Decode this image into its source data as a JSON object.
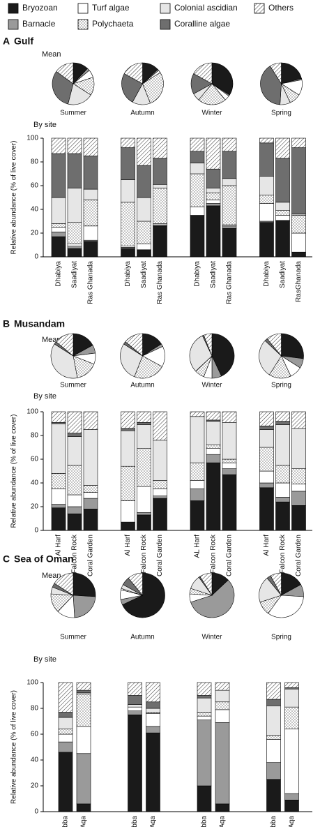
{
  "chart_data": {
    "type": "bar",
    "series": [
      {
        "name": "Bryozoan",
        "color": "#1a1a1a"
      },
      {
        "name": "Barnacle",
        "color": "#9a9a9a"
      },
      {
        "name": "Turf algae",
        "color": "#ffffff"
      },
      {
        "name": "Polychaeta",
        "color": "#ffffff",
        "pattern": "dots"
      },
      {
        "name": "Colonial ascidian",
        "color": "#e6e6e6"
      },
      {
        "name": "Coralline algae",
        "color": "#6e6e6e"
      },
      {
        "name": "Others",
        "color": "#ffffff",
        "pattern": "hatch"
      }
    ],
    "panels": [
      {
        "label": "A",
        "title": "Gulf",
        "pie_title": "Mean",
        "bar_title": "By site",
        "ylabel": "Relative abundance (% of live cover)",
        "ylim": [
          0,
          100
        ],
        "yticks": [
          0,
          20,
          40,
          60,
          80,
          100
        ],
        "groups": [
          "Summer",
          "Autumn",
          "Winter",
          "Spring"
        ],
        "categories": [
          "Dhabiya",
          "Saadiyat",
          "Ras Ghanada",
          "Dhabiya",
          "Saadiyat",
          "Ras Ghanada",
          "Dhabiya",
          "Saadiyat",
          "Ras Ghanada",
          "Dhabiya",
          "Saadiyat",
          "RasGhanada"
        ],
        "values": [
          [
            17,
            7,
            13,
            7,
            6,
            26,
            35,
            43,
            24,
            29,
            30,
            4
          ],
          [
            4,
            2,
            1,
            1,
            0,
            1,
            0,
            2,
            2,
            1,
            1,
            0
          ],
          [
            4,
            2,
            12,
            1,
            5,
            1,
            7,
            3,
            1,
            15,
            4,
            16
          ],
          [
            3,
            18,
            22,
            37,
            19,
            30,
            28,
            6,
            33,
            7,
            4,
            15
          ],
          [
            22,
            29,
            9,
            19,
            20,
            3,
            9,
            4,
            6,
            16,
            7,
            1
          ],
          [
            37,
            29,
            28,
            27,
            27,
            22,
            10,
            16,
            23,
            28,
            37,
            56
          ],
          [
            13,
            13,
            15,
            8,
            23,
            17,
            11,
            26,
            11,
            4,
            17,
            8
          ]
        ],
        "means": [
          [
            12,
            13,
            34,
            21
          ],
          [
            2,
            1,
            1,
            1
          ],
          [
            6,
            2,
            4,
            12
          ],
          [
            14,
            28,
            22,
            9
          ],
          [
            20,
            14,
            6,
            8
          ],
          [
            31,
            25,
            16,
            40
          ],
          [
            15,
            17,
            17,
            9
          ]
        ]
      },
      {
        "label": "B",
        "title": "Musandam",
        "pie_title": "Mean",
        "bar_title": "By site",
        "ylabel": "Relative abundance (% of live cover)",
        "ylim": [
          0,
          100
        ],
        "yticks": [
          0,
          20,
          40,
          60,
          80,
          100
        ],
        "groups": [
          "Summer",
          "Autumn",
          "Winter",
          "Spring"
        ],
        "categories": [
          "Al Harf",
          "Falcon Rock",
          "Coral Garden",
          "Al Harf",
          "Falcon Rock",
          "Coral Garden",
          "AL Harf",
          "Falcon Rock",
          "Coral Garden",
          "Al Harf",
          "Falcon Rock",
          "Coral Garden"
        ],
        "values": [
          [
            19,
            14,
            18,
            7,
            13,
            27,
            25,
            57,
            47,
            36,
            24,
            21
          ],
          [
            3,
            6,
            9,
            0,
            2,
            2,
            10,
            7,
            5,
            4,
            4,
            12
          ],
          [
            13,
            10,
            5,
            18,
            22,
            6,
            7,
            5,
            5,
            10,
            12,
            6
          ],
          [
            13,
            25,
            6,
            29,
            32,
            7,
            15,
            3,
            3,
            20,
            15,
            13
          ],
          [
            42,
            24,
            47,
            30,
            20,
            34,
            39,
            20,
            31,
            15,
            34,
            34
          ],
          [
            1,
            3,
            0,
            2,
            2,
            0,
            0,
            1,
            0,
            3,
            3,
            0
          ],
          [
            9,
            18,
            15,
            14,
            9,
            24,
            4,
            7,
            9,
            12,
            8,
            14
          ]
        ],
        "means": [
          [
            17,
            16,
            43,
            27
          ],
          [
            6,
            2,
            7,
            7
          ],
          [
            8,
            15,
            6,
            9
          ],
          [
            16,
            23,
            7,
            16
          ],
          [
            37,
            28,
            30,
            28
          ],
          [
            2,
            2,
            1,
            2
          ],
          [
            14,
            14,
            6,
            11
          ]
        ]
      },
      {
        "label": "C",
        "title": "Sea of Oman",
        "pie_title": "Mean",
        "bar_title": "By site",
        "ylabel": "Relative abundance (% of live cover)",
        "ylim": [
          0,
          100
        ],
        "yticks": [
          0,
          20,
          40,
          60,
          80,
          100
        ],
        "groups": [
          "Summer",
          "Autumn",
          "Winter",
          "Spring"
        ],
        "categories": [
          "Dibba",
          "Al Aqa",
          "Dibba",
          "Al Aqa",
          "Dibba",
          "Al Aqa",
          "Dibba",
          "Al Aqa"
        ],
        "values": [
          [
            46,
            6,
            75,
            61,
            20,
            6,
            25,
            9
          ],
          [
            8,
            39,
            3,
            5,
            51,
            63,
            13,
            5
          ],
          [
            6,
            21,
            3,
            10,
            3,
            10,
            18,
            50
          ],
          [
            4,
            25,
            0,
            1,
            3,
            6,
            3,
            17
          ],
          [
            9,
            1,
            2,
            3,
            11,
            9,
            23,
            14
          ],
          [
            4,
            2,
            7,
            5,
            2,
            0,
            5,
            1
          ],
          [
            23,
            6,
            10,
            15,
            10,
            6,
            13,
            4
          ]
        ],
        "means": [
          [
            26,
            68,
            13,
            17
          ],
          [
            23,
            4,
            57,
            9
          ],
          [
            13,
            7,
            6,
            34
          ],
          [
            14,
            1,
            4,
            10
          ],
          [
            5,
            3,
            10,
            19
          ],
          [
            3,
            6,
            1,
            3
          ],
          [
            16,
            11,
            9,
            8
          ]
        ]
      }
    ]
  }
}
